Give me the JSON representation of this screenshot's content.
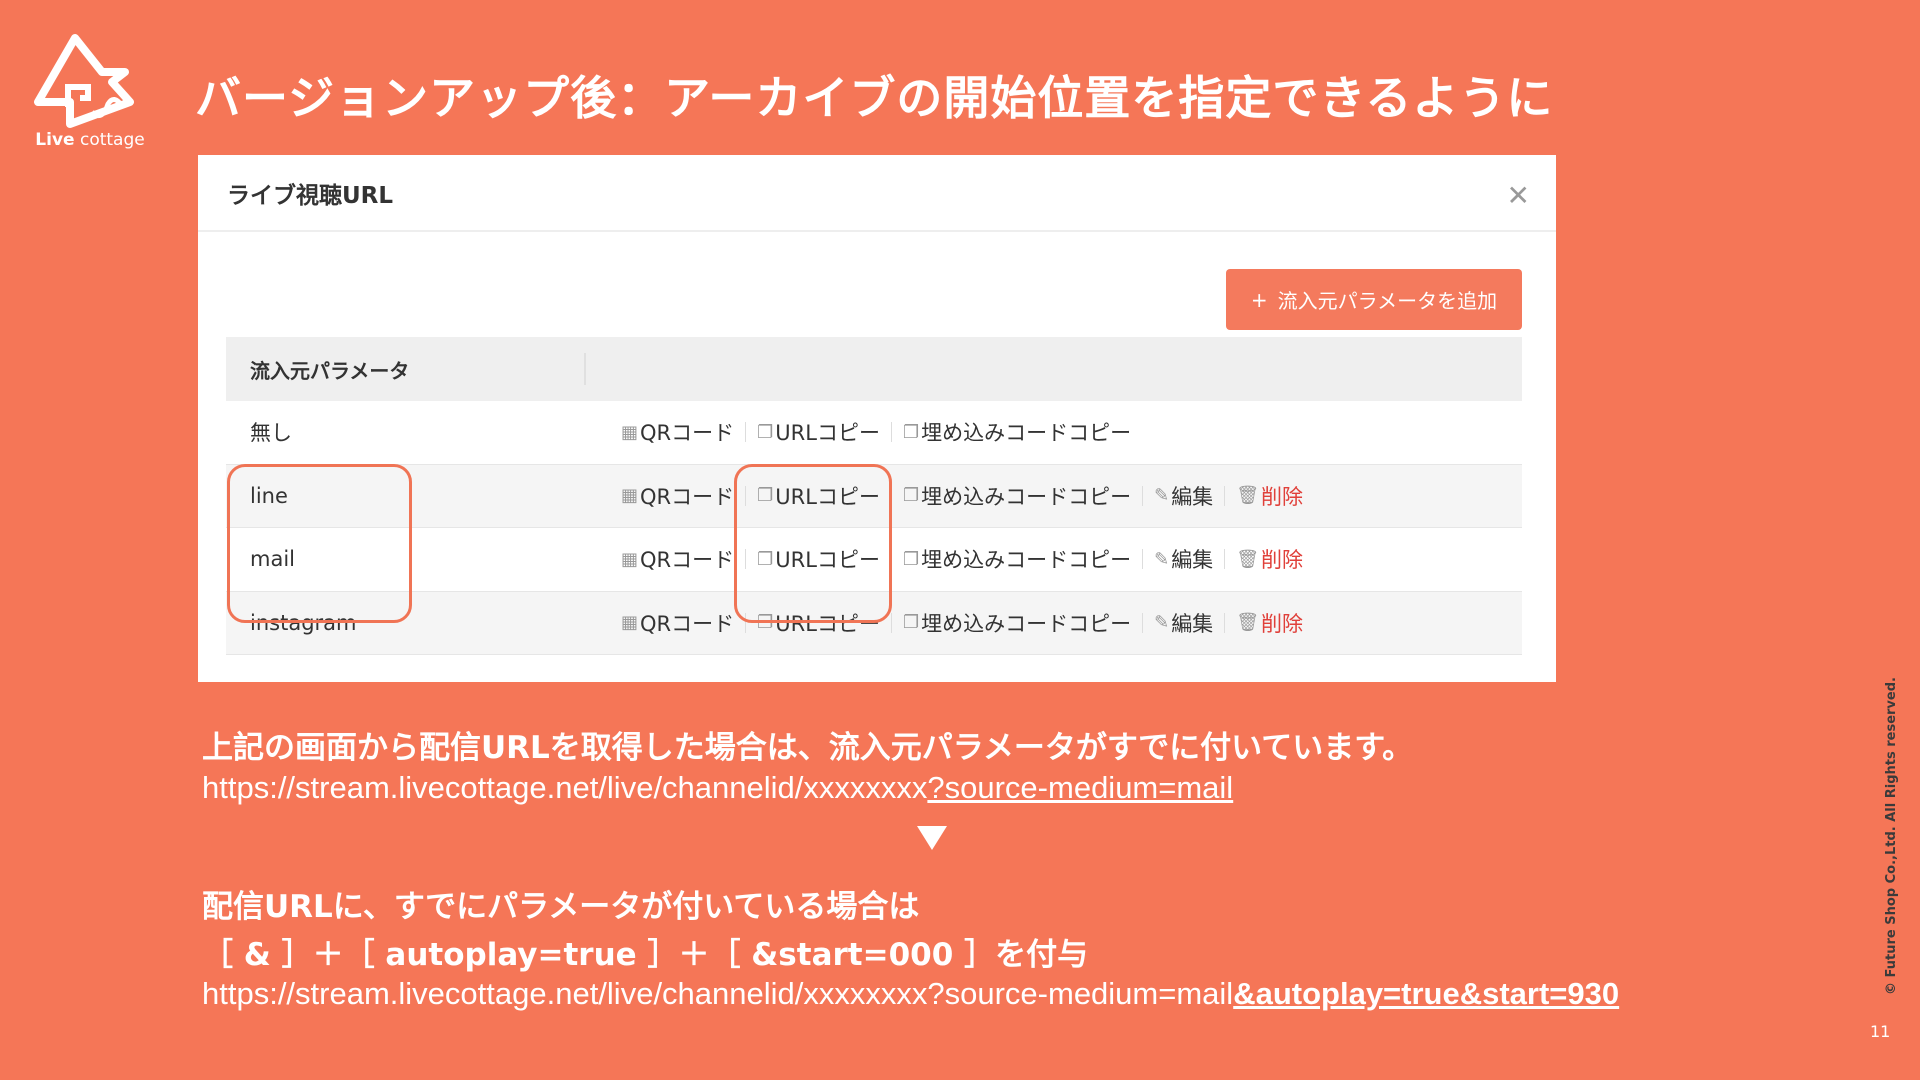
{
  "logo": {
    "brand_bold": "Live",
    "brand_light": " cottage"
  },
  "title": "バージョンアップ後：アーカイブの開始位置を指定できるように",
  "dialog": {
    "title": "ライブ視聴URL",
    "close_icon": "close-icon",
    "add_button": "流入元パラメータを追加",
    "add_icon": "+",
    "column_header": "流入元パラメータ",
    "actions": {
      "qr": "QRコード",
      "url_copy": "URLコピー",
      "embed_copy": "埋め込みコードコピー",
      "edit": "編集",
      "delete": "削除"
    },
    "rows": [
      {
        "name": "無し",
        "editable": false
      },
      {
        "name": "line",
        "editable": true
      },
      {
        "name": "mail",
        "editable": true
      },
      {
        "name": "instagram",
        "editable": true
      }
    ]
  },
  "body": {
    "line1": "上記の画面から配信URLを取得した場合は、流入元パラメータがすでに付いています。",
    "url1_base": "https://stream.livecottage.net/live/channelid/xxxxxxxx",
    "url1_param": "?source-medium=mail",
    "line2": "配信URLに、すでにパラメータが付いている場合は",
    "line3": "［ & ］＋［ autoplay=true ］＋［ &start=000 ］を付与",
    "url2_base": "https://stream.livecottage.net/live/channelid/xxxxxxxx?source-medium=mail",
    "url2_param": "&autoplay=true&start=930"
  },
  "footer": {
    "copyright": "© Future Shop Co.,Ltd. All Rights reserved.",
    "page": "11"
  },
  "colors": {
    "background": "#f57657",
    "accent": "#f47a5d",
    "delete": "#e0403a"
  }
}
